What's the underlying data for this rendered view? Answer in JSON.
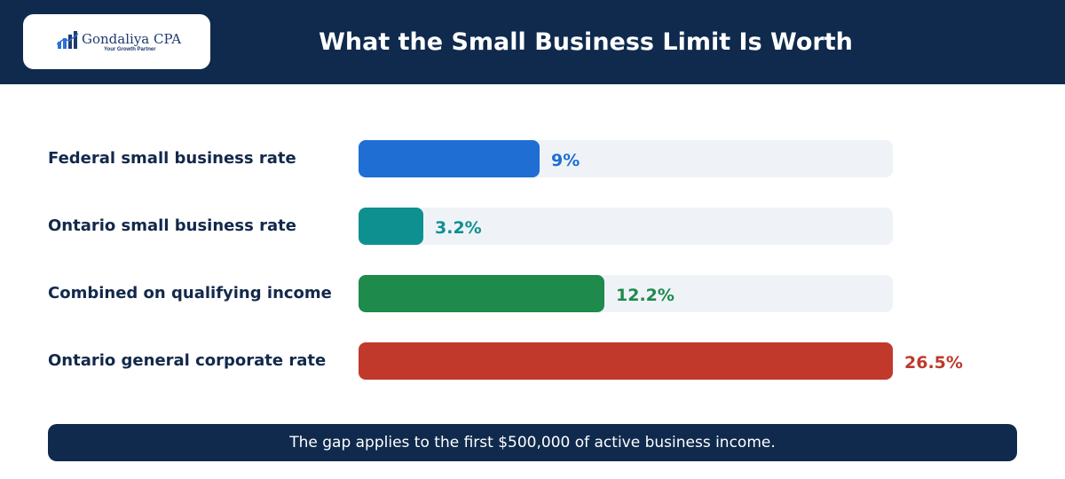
{
  "header": {
    "logo_name": "Gondaliya CPA",
    "logo_tagline": "Your Growth Partner",
    "title": "What the Small Business Limit Is Worth"
  },
  "chart_data": {
    "type": "bar",
    "orientation": "horizontal",
    "title": "What the Small Business Limit Is Worth",
    "xlim": [
      0,
      26.5
    ],
    "categories": [
      "Federal small business rate",
      "Ontario small business rate",
      "Combined on qualifying income",
      "Ontario general corporate rate"
    ],
    "values": [
      9,
      3.2,
      12.2,
      26.5
    ],
    "value_labels": [
      "9%",
      "3.2%",
      "12.2%",
      "26.5%"
    ],
    "colors": [
      "#1f6ed4",
      "#0e9090",
      "#1e8a4c",
      "#c0392b"
    ],
    "grid": false,
    "legend": "none"
  },
  "footer": {
    "note": "The gap applies to the first $500,000 of active business income."
  }
}
